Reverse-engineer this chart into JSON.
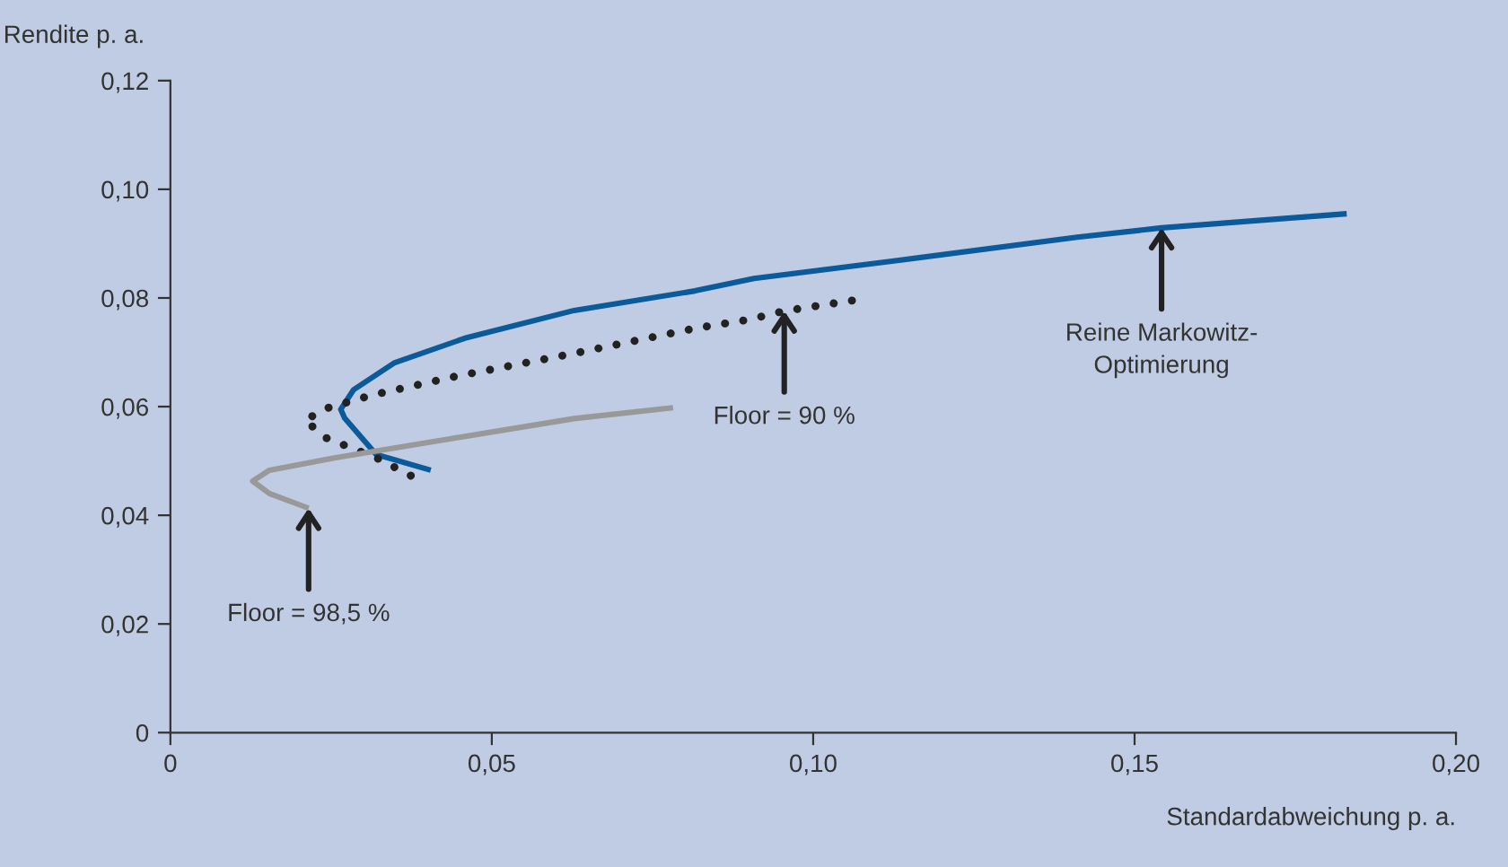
{
  "chart_data": {
    "type": "line",
    "xlabel": "Standardabweichung p. a.",
    "ylabel": "Rendite p. a.",
    "xlim": [
      0,
      0.2
    ],
    "ylim": [
      0,
      0.12
    ],
    "xticks": [
      0,
      {
        "value": 0.05,
        "label": "0,05"
      },
      {
        "value": 0.1,
        "label": "0,10"
      },
      {
        "value": 0.15,
        "label": "0,15"
      },
      {
        "value": 0.2,
        "label": "0,20"
      }
    ],
    "yticks": [
      0,
      {
        "value": 0.02,
        "label": "0,02"
      },
      {
        "value": 0.04,
        "label": "0,04"
      },
      {
        "value": 0.06,
        "label": "0,06"
      },
      {
        "value": 0.08,
        "label": "0,08"
      },
      {
        "value": 0.1,
        "label": "0,10"
      },
      {
        "value": 0.12,
        "label": "0,12"
      }
    ],
    "grid": false,
    "legend": false,
    "series": [
      {
        "color": "#0b5a9a",
        "line_style": "solid",
        "x": [
          0.0405,
          0.032,
          0.0271,
          0.0265,
          0.0285,
          0.0349,
          0.0461,
          0.0628,
          0.0816,
          0.0908,
          0.1131,
          0.1411,
          0.1542,
          0.183
        ],
        "values": [
          0.0483,
          0.0512,
          0.0579,
          0.0595,
          0.0631,
          0.0681,
          0.0727,
          0.0777,
          0.0813,
          0.0836,
          0.0869,
          0.0912,
          0.0929,
          0.0955
        ]
      },
      {
        "color": "#222222",
        "line_style": "dotted",
        "x": [
          0.0374,
          0.032,
          0.0243,
          0.0209,
          0.0246,
          0.0313,
          0.0441,
          0.0628,
          0.0816,
          0.0899,
          0.0955,
          0.107
        ],
        "values": [
          0.0473,
          0.0506,
          0.0542,
          0.0575,
          0.0598,
          0.0621,
          0.0655,
          0.0698,
          0.0744,
          0.076,
          0.0776,
          0.0797
        ]
      },
      {
        "color": "#999999",
        "line_style": "solid",
        "x": [
          0.0215,
          0.0154,
          0.0128,
          0.0154,
          0.0257,
          0.0441,
          0.0628,
          0.0782
        ],
        "values": [
          0.0413,
          0.044,
          0.0463,
          0.0483,
          0.0506,
          0.0542,
          0.0578,
          0.0598
        ]
      }
    ],
    "annotations": [
      {
        "text": "Floor = 98,5 %",
        "x": 0.0215,
        "y": 0.0413
      },
      {
        "text": "Floor = 90 %",
        "x": 0.0955,
        "y": 0.0776
      },
      {
        "text": "Reine Markowitz-\nOptimierung",
        "x": 0.1542,
        "y": 0.0929
      }
    ]
  }
}
